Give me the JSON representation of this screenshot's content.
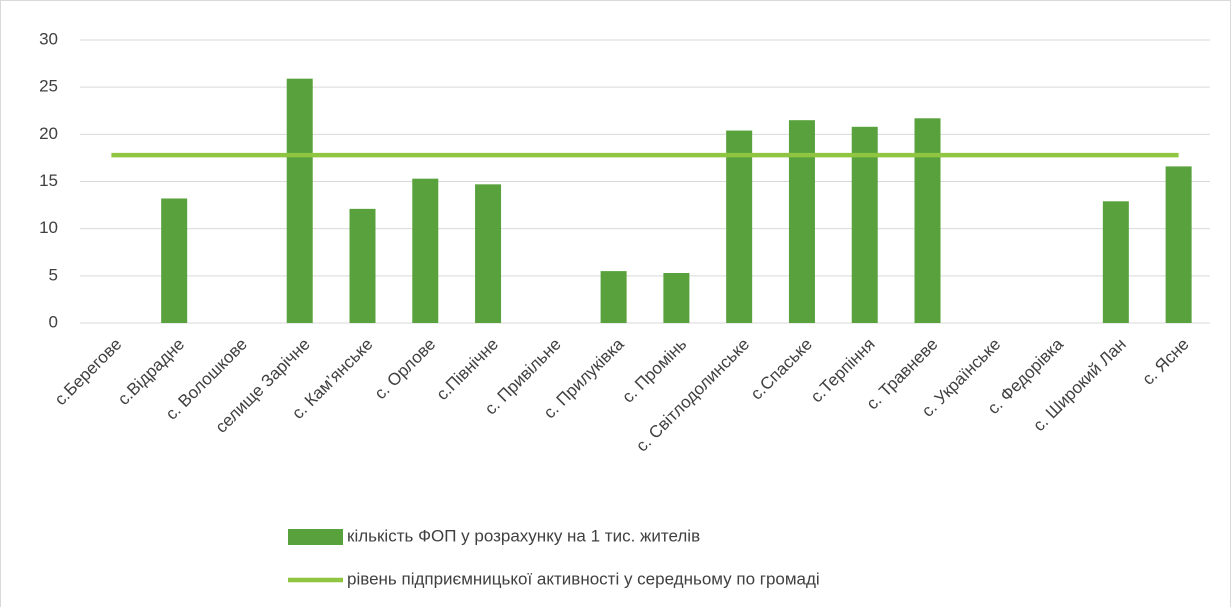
{
  "chart_data": {
    "type": "bar",
    "categories": [
      "с.Берегове",
      "с.Відрадне",
      "с. Волошкове",
      "селище Зарічне",
      "с. Кам’янське",
      "с. Орлове",
      "с.Північне",
      "с. Привільне",
      "с. Прилуківка",
      "с. Промінь",
      "с. Світлодолинське",
      "с.Спаське",
      "с.Терпіння",
      "с. Травневе",
      "с. Українське",
      "с. Федорівка",
      "с. Широкий Лан",
      "с. Ясне"
    ],
    "series": [
      {
        "name": "кількість ФОП у розрахунку на 1 тис. жителів",
        "type": "bar",
        "color": "#58a13c",
        "values": [
          0,
          13.2,
          0,
          25.9,
          12.1,
          15.3,
          14.7,
          0,
          5.5,
          5.3,
          20.4,
          21.5,
          20.8,
          21.7,
          0,
          0,
          12.9,
          16.6
        ]
      },
      {
        "name": "рівень підприємницької активності у середньому по громаді",
        "type": "line",
        "color": "#8fc540",
        "values": [
          17.8,
          17.8,
          17.8,
          17.8,
          17.8,
          17.8,
          17.8,
          17.8,
          17.8,
          17.8,
          17.8,
          17.8,
          17.8,
          17.8,
          17.8,
          17.8,
          17.8,
          17.8
        ]
      }
    ],
    "ylim": [
      0,
      30
    ],
    "yticks": [
      0,
      5,
      10,
      15,
      20,
      25,
      30
    ],
    "grid": true,
    "legend": "bottom"
  }
}
